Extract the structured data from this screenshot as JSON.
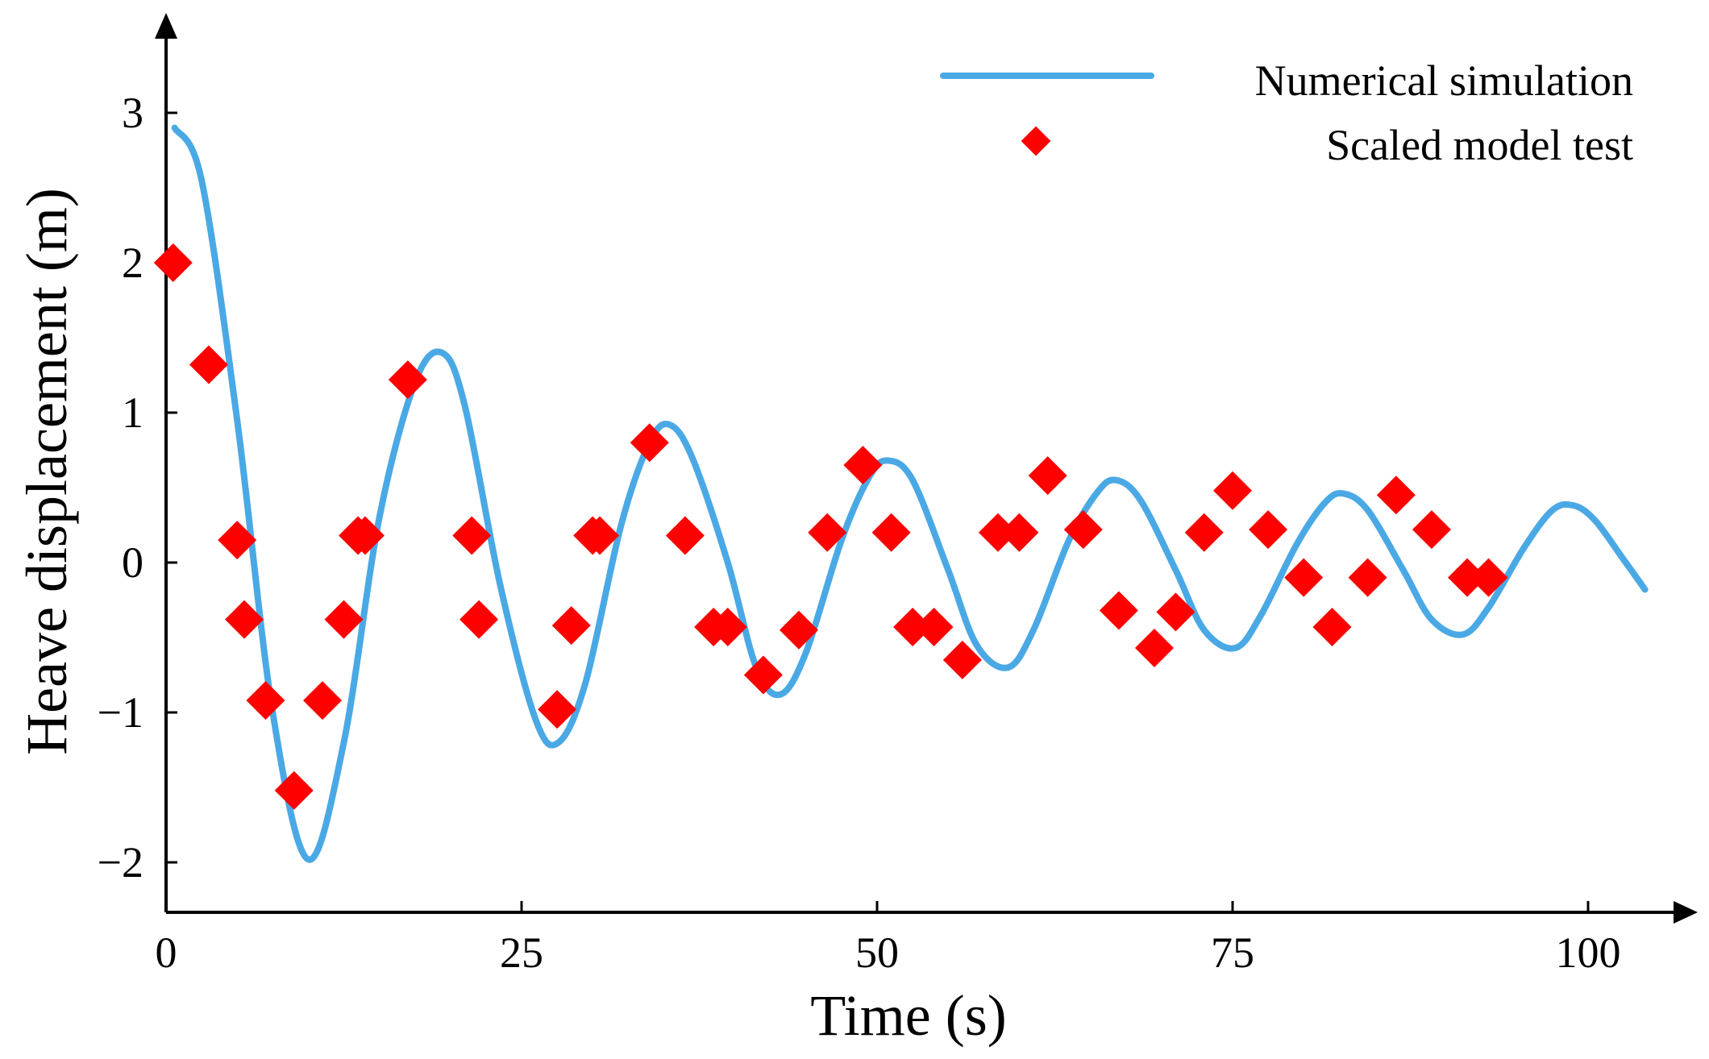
{
  "chart_data": {
    "type": "line",
    "title": "",
    "xlabel": "Time (s)",
    "ylabel": "Heave displacement (m)",
    "xlim": [
      0,
      104
    ],
    "ylim": [
      -2.3,
      3.6
    ],
    "x_ticks": [
      {
        "value": 0,
        "label": "0"
      },
      {
        "value": 25,
        "label": "25"
      },
      {
        "value": 50,
        "label": "50"
      },
      {
        "value": 75,
        "label": "75"
      },
      {
        "value": 100,
        "label": "100"
      }
    ],
    "y_ticks": [
      {
        "value": -2,
        "label": "−2"
      },
      {
        "value": -1,
        "label": "−1"
      },
      {
        "value": 0,
        "label": "0"
      },
      {
        "value": 1,
        "label": "1"
      },
      {
        "value": 2,
        "label": "2"
      },
      {
        "value": 3,
        "label": "3"
      }
    ],
    "legend_position": "top-right",
    "series": [
      {
        "name": "Numerical simulation",
        "kind": "line",
        "color": "#4aa9e5",
        "x": [
          0.6,
          2.5,
          5,
          7.5,
          10,
          12.5,
          15,
          17.5,
          19.4,
          21,
          23.5,
          26,
          27.6,
          29.5,
          32,
          34,
          35.4,
          37,
          39.5,
          41.5,
          43.2,
          45,
          47.5,
          49.5,
          50.8,
          52.5,
          55,
          57,
          59.2,
          61,
          63.5,
          65.5,
          66.8,
          68.5,
          71,
          73,
          75.2,
          77,
          79.5,
          81.5,
          82.8,
          84.5,
          87,
          89,
          91.2,
          93,
          95.5,
          97.5,
          99,
          100.5,
          102.5,
          104
        ],
        "y": [
          2.9,
          2.55,
          0.95,
          -1.0,
          -1.98,
          -1.2,
          0.3,
          1.2,
          1.4,
          1.05,
          -0.15,
          -1.05,
          -1.2,
          -0.8,
          0.25,
          0.8,
          0.92,
          0.7,
          0.0,
          -0.7,
          -0.88,
          -0.6,
          0.15,
          0.58,
          0.68,
          0.55,
          -0.05,
          -0.55,
          -0.7,
          -0.45,
          0.15,
          0.47,
          0.55,
          0.42,
          -0.05,
          -0.45,
          -0.57,
          -0.35,
          0.12,
          0.4,
          0.46,
          0.35,
          -0.05,
          -0.38,
          -0.48,
          -0.3,
          0.1,
          0.35,
          0.38,
          0.28,
          0.02,
          -0.18
        ]
      },
      {
        "name": "Scaled model test",
        "kind": "scatter",
        "color": "#ff0000",
        "x": [
          0.5,
          3,
          5,
          5.5,
          7,
          9,
          11,
          12.5,
          13.5,
          14,
          17,
          21.5,
          22,
          27.5,
          28.5,
          30,
          30.5,
          34,
          36.5,
          38.5,
          39.5,
          42,
          44.5,
          46.5,
          49,
          51,
          52.5,
          54,
          56,
          58.5,
          60,
          62,
          64.5,
          67,
          69.5,
          71,
          73,
          75,
          77.5,
          80,
          82,
          84.5,
          86.5,
          89,
          91.5,
          93
        ],
        "y": [
          2.0,
          1.32,
          0.15,
          -0.38,
          -0.92,
          -1.52,
          -0.92,
          -0.38,
          0.18,
          0.18,
          1.22,
          0.18,
          -0.38,
          -0.98,
          -0.42,
          0.18,
          0.18,
          0.8,
          0.18,
          -0.43,
          -0.43,
          -0.75,
          -0.45,
          0.2,
          0.65,
          0.2,
          -0.43,
          -0.43,
          -0.65,
          0.2,
          0.2,
          0.58,
          0.22,
          -0.32,
          -0.57,
          -0.33,
          0.2,
          0.48,
          0.22,
          -0.1,
          -0.43,
          -0.1,
          0.45,
          0.22,
          -0.1,
          -0.1
        ]
      }
    ]
  }
}
